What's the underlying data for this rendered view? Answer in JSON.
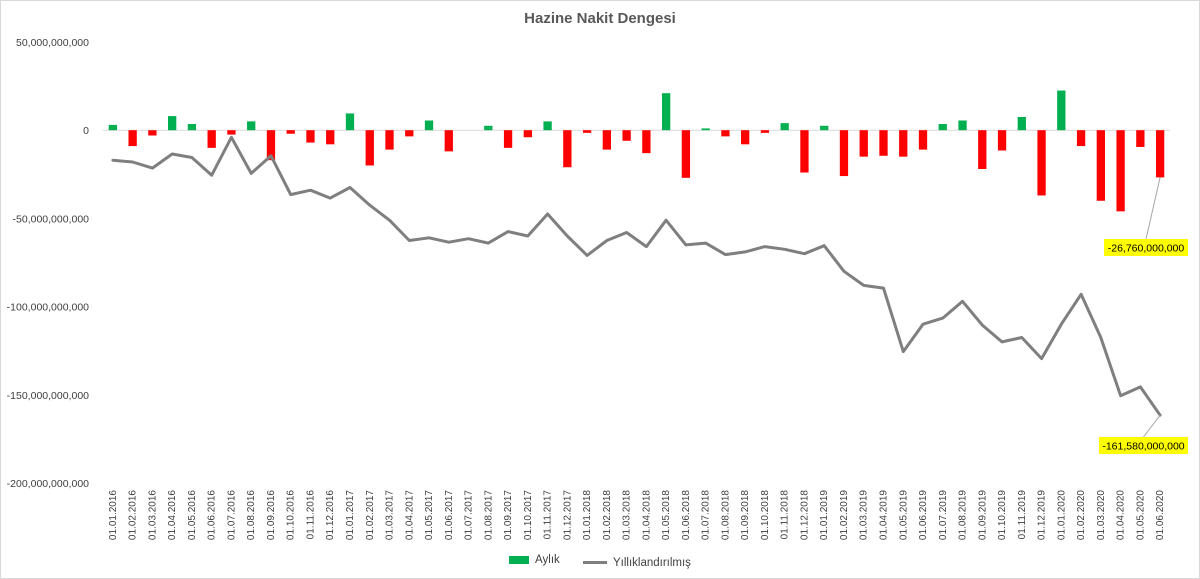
{
  "chart_data": {
    "type": "bar",
    "title": "Hazine  Nakit Dengesi",
    "xlabel": "",
    "ylabel": "",
    "ylim": [
      -200000000000,
      50000000000
    ],
    "y_ticks": [
      50000000000,
      0,
      -50000000000,
      -100000000000,
      -150000000000,
      -200000000000
    ],
    "y_tick_labels": [
      "50,000,000,000",
      "0",
      "-50,000,000,000",
      "-100,000,000,000",
      "-150,000,000,000",
      "-200,000,000,000"
    ],
    "categories": [
      "01.01.2016",
      "01.02.2016",
      "01.03.2016",
      "01.04.2016",
      "01.05.2016",
      "01.06.2016",
      "01.07.2016",
      "01.08.2016",
      "01.09.2016",
      "01.10.2016",
      "01.11.2016",
      "01.12.2016",
      "01.01.2017",
      "01.02.2017",
      "01.03.2017",
      "01.04.2017",
      "01.05.2017",
      "01.06.2017",
      "01.07.2017",
      "01.08.2017",
      "01.09.2017",
      "01.10.2017",
      "01.11.2017",
      "01.12.2017",
      "01.01.2018",
      "01.02.2018",
      "01.03.2018",
      "01.04.2018",
      "01.05.2018",
      "01.06.2018",
      "01.07.2018",
      "01.08.2018",
      "01.09.2018",
      "01.10.2018",
      "01.11.2018",
      "01.12.2018",
      "01.01.2019",
      "01.02.2019",
      "01.03.2019",
      "01.04.2019",
      "01.05.2019",
      "01.06.2019",
      "01.07.2019",
      "01.08.2019",
      "01.09.2019",
      "01.10.2019",
      "01.11.2019",
      "01.12.2019",
      "01.01.2020",
      "01.02.2020",
      "01.03.2020",
      "01.04.2020",
      "01.05.2020",
      "01.06.2020"
    ],
    "series": [
      {
        "name": "Aylık",
        "type": "bar",
        "positive_color": "#00b050",
        "negative_color": "#ff0000",
        "values": [
          3000000000,
          -9000000000,
          -3000000000,
          8000000000,
          3500000000,
          -10000000000,
          -2500000000,
          5000000000,
          -17000000000,
          -2000000000,
          -7000000000,
          -8000000000,
          9500000000,
          -20000000000,
          -11000000000,
          -3500000000,
          5500000000,
          -12000000000,
          0,
          2500000000,
          -10000000000,
          -4000000000,
          5000000000,
          -21000000000,
          -1500000000,
          -11000000000,
          -6000000000,
          -13000000000,
          21000000000,
          -27000000000,
          1000000000,
          -3500000000,
          -8000000000,
          -1500000000,
          4000000000,
          -24000000000,
          2500000000,
          -26000000000,
          -15000000000,
          -14500000000,
          -15000000000,
          -11000000000,
          3500000000,
          5500000000,
          -22000000000,
          -11500000000,
          7500000000,
          -37000000000,
          22500000000,
          -9000000000,
          -40000000000,
          -46000000000,
          -9500000000,
          -26760000000
        ]
      },
      {
        "name": "Yıllıklandırılmış",
        "type": "line",
        "color": "#7f7f7f",
        "values": [
          -17000000000,
          -18000000000,
          -21500000000,
          -13500000000,
          -15500000000,
          -25500000000,
          -4000000000,
          -24500000000,
          -14500000000,
          -36500000000,
          -34000000000,
          -38500000000,
          -32500000000,
          -42500000000,
          -51000000000,
          -62500000000,
          -61000000000,
          -63500000000,
          -61500000000,
          -64000000000,
          -57500000000,
          -60000000000,
          -47500000000,
          -60000000000,
          -71000000000,
          -62500000000,
          -58000000000,
          -66000000000,
          -51000000000,
          -65000000000,
          -64000000000,
          -70500000000,
          -69000000000,
          -66000000000,
          -67500000000,
          -70000000000,
          -65500000000,
          -80000000000,
          -88000000000,
          -89500000000,
          -125500000000,
          -110000000000,
          -106500000000,
          -97000000000,
          -110500000000,
          -120000000000,
          -117500000000,
          -129500000000,
          -110000000000,
          -93000000000,
          -117500000000,
          -150500000000,
          -145500000000,
          -161580000000
        ]
      }
    ],
    "annotations": [
      {
        "label": "-26,760,000,000",
        "series": "Aylık",
        "index": 53
      },
      {
        "label": "-161,580,000,000",
        "series": "Yıllıklandırılmış",
        "index": 53
      }
    ],
    "annotation_fill": "#ffff00",
    "legend": [
      "Aylık",
      "Yıllıklandırılmış"
    ],
    "legend_placement": "bottom",
    "grid": false
  }
}
